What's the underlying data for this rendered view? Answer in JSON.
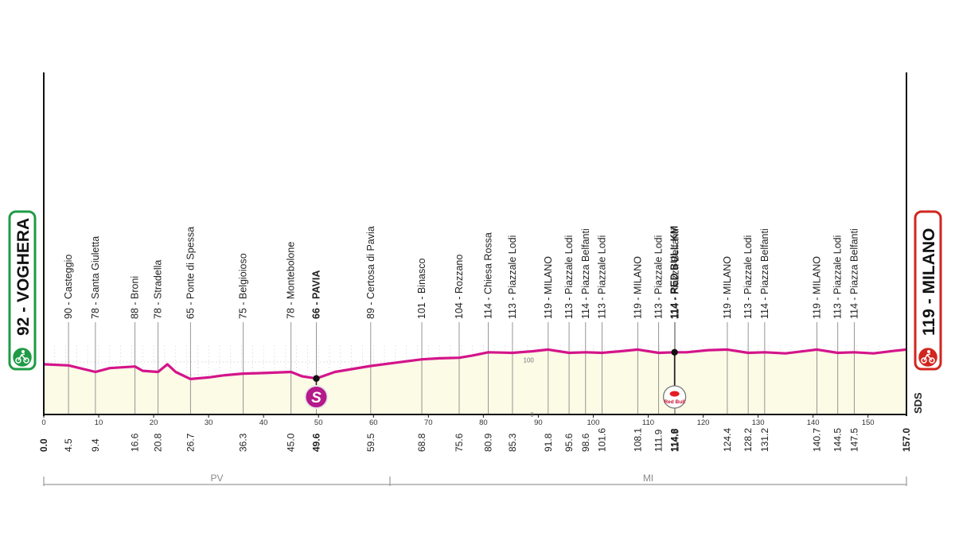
{
  "chart_data": {
    "type": "area",
    "title": "",
    "xlabel": "",
    "ylabel": "",
    "xlim": [
      0,
      157
    ],
    "ylim": [
      0,
      140
    ],
    "x_ticks": [
      0,
      10,
      20,
      30,
      40,
      50,
      60,
      70,
      80,
      90,
      100,
      110,
      120,
      130,
      140,
      150
    ],
    "y_ticks": [
      0,
      100
    ],
    "grid": true,
    "colors": {
      "line": "#d4148a",
      "fill": "#fbfbe6",
      "start": "#1f9b46",
      "finish": "#d1261f",
      "axis": "#111111",
      "grey": "#9a9a9a"
    },
    "start": {
      "alt": "92",
      "name": "VOGHERA",
      "label": "92 - VOGHERA",
      "km": "0.0",
      "icon": "green-cyclist-icon"
    },
    "finish": {
      "alt": "119",
      "name": "MILANO",
      "label": "119 - MILANO",
      "km": "157.0",
      "icon": "red-finish-cyclist-icon"
    },
    "series": [
      {
        "x": [
          0,
          4.5,
          9.4,
          12,
          16.6,
          18,
          20.8,
          22.5,
          24,
          26.7,
          30,
          33,
          36.3,
          40,
          45.0,
          47,
          49.6,
          53,
          59.5,
          64,
          68.8,
          72,
          75.6,
          78,
          80.9,
          85.3,
          89,
          91.8,
          95.6,
          98.6,
          101.6,
          105,
          108.1,
          111.9,
          114.8,
          117,
          121,
          124.4,
          128.2,
          131.2,
          135,
          140.7,
          144.5,
          147.5,
          151,
          155,
          157
        ],
        "y": [
          92,
          90,
          78,
          85,
          88,
          80,
          78,
          92,
          78,
          65,
          68,
          72,
          75,
          76,
          78,
          70,
          66,
          78,
          89,
          95,
          101,
          103,
          104,
          108,
          114,
          113,
          116,
          119,
          113,
          114,
          113,
          116,
          119,
          113,
          114,
          114,
          118,
          119,
          113,
          114,
          112,
          119,
          113,
          114,
          112,
          117,
          119
        ]
      }
    ],
    "points": [
      {
        "km": "4.5",
        "label": "90 - Casteggio"
      },
      {
        "km": "9.4",
        "label": "78 - Santa Giuletta"
      },
      {
        "km": "16.6",
        "label": "88 - Broni"
      },
      {
        "km": "20.8",
        "label": "78 - Stradella"
      },
      {
        "km": "26.7",
        "label": "65 - Ponte di Spessa"
      },
      {
        "km": "36.3",
        "label": "75 - Belgioioso"
      },
      {
        "km": "45.0",
        "label": "78 - Montebolone"
      },
      {
        "km": "49.6",
        "label": "66 - PAVIA",
        "bold": true,
        "sprint": true
      },
      {
        "km": "59.5",
        "label": "89 - Certosa di Pavia"
      },
      {
        "km": "68.8",
        "label": "101 - Binasco"
      },
      {
        "km": "75.6",
        "label": "104 - Rozzano"
      },
      {
        "km": "80.9",
        "label": "114 - Chiesa Rossa"
      },
      {
        "km": "85.3",
        "label": "113 - Piazzale Lodi"
      },
      {
        "km": "91.8",
        "label": "119 - MILANO"
      },
      {
        "km": "95.6",
        "label": "113 - Piazzale Lodi"
      },
      {
        "km": "98.6",
        "label": "114 - Piazza Belfanti"
      },
      {
        "km": "101.6",
        "label": "113 - Piazzale Lodi"
      },
      {
        "km": "108.1",
        "label": "119 - MILANO"
      },
      {
        "km": "111.9",
        "label": "113 - Piazzale Lodi"
      },
      {
        "km": "114.8",
        "label": "114 - RED BULL KM",
        "bold": true,
        "redbull": true
      },
      {
        "km": "114.9",
        "label": "114 - Piazza Belfanti"
      },
      {
        "km": "124.4",
        "label": "119 - MILANO"
      },
      {
        "km": "128.2",
        "label": "113 - Piazzale Lodi"
      },
      {
        "km": "131.2",
        "label": "114 - Piazza Belfanti"
      },
      {
        "km": "140.7",
        "label": "119 - MILANO"
      },
      {
        "km": "144.5",
        "label": "113 - Piazzale Lodi"
      },
      {
        "km": "147.5",
        "label": "114 - Piazza Belfanti"
      }
    ],
    "sprint_icon": {
      "letter": "S",
      "name": "intermediate-sprint-icon"
    },
    "redbull_icon": {
      "text": "Red Bull",
      "name": "red-bull-km-icon"
    },
    "provinces": [
      {
        "name": "PV",
        "from": 0,
        "to": 63
      },
      {
        "name": "MI",
        "from": 63,
        "to": 157
      }
    ],
    "logo": {
      "text": "SDS",
      "name": "sds-logo"
    }
  }
}
